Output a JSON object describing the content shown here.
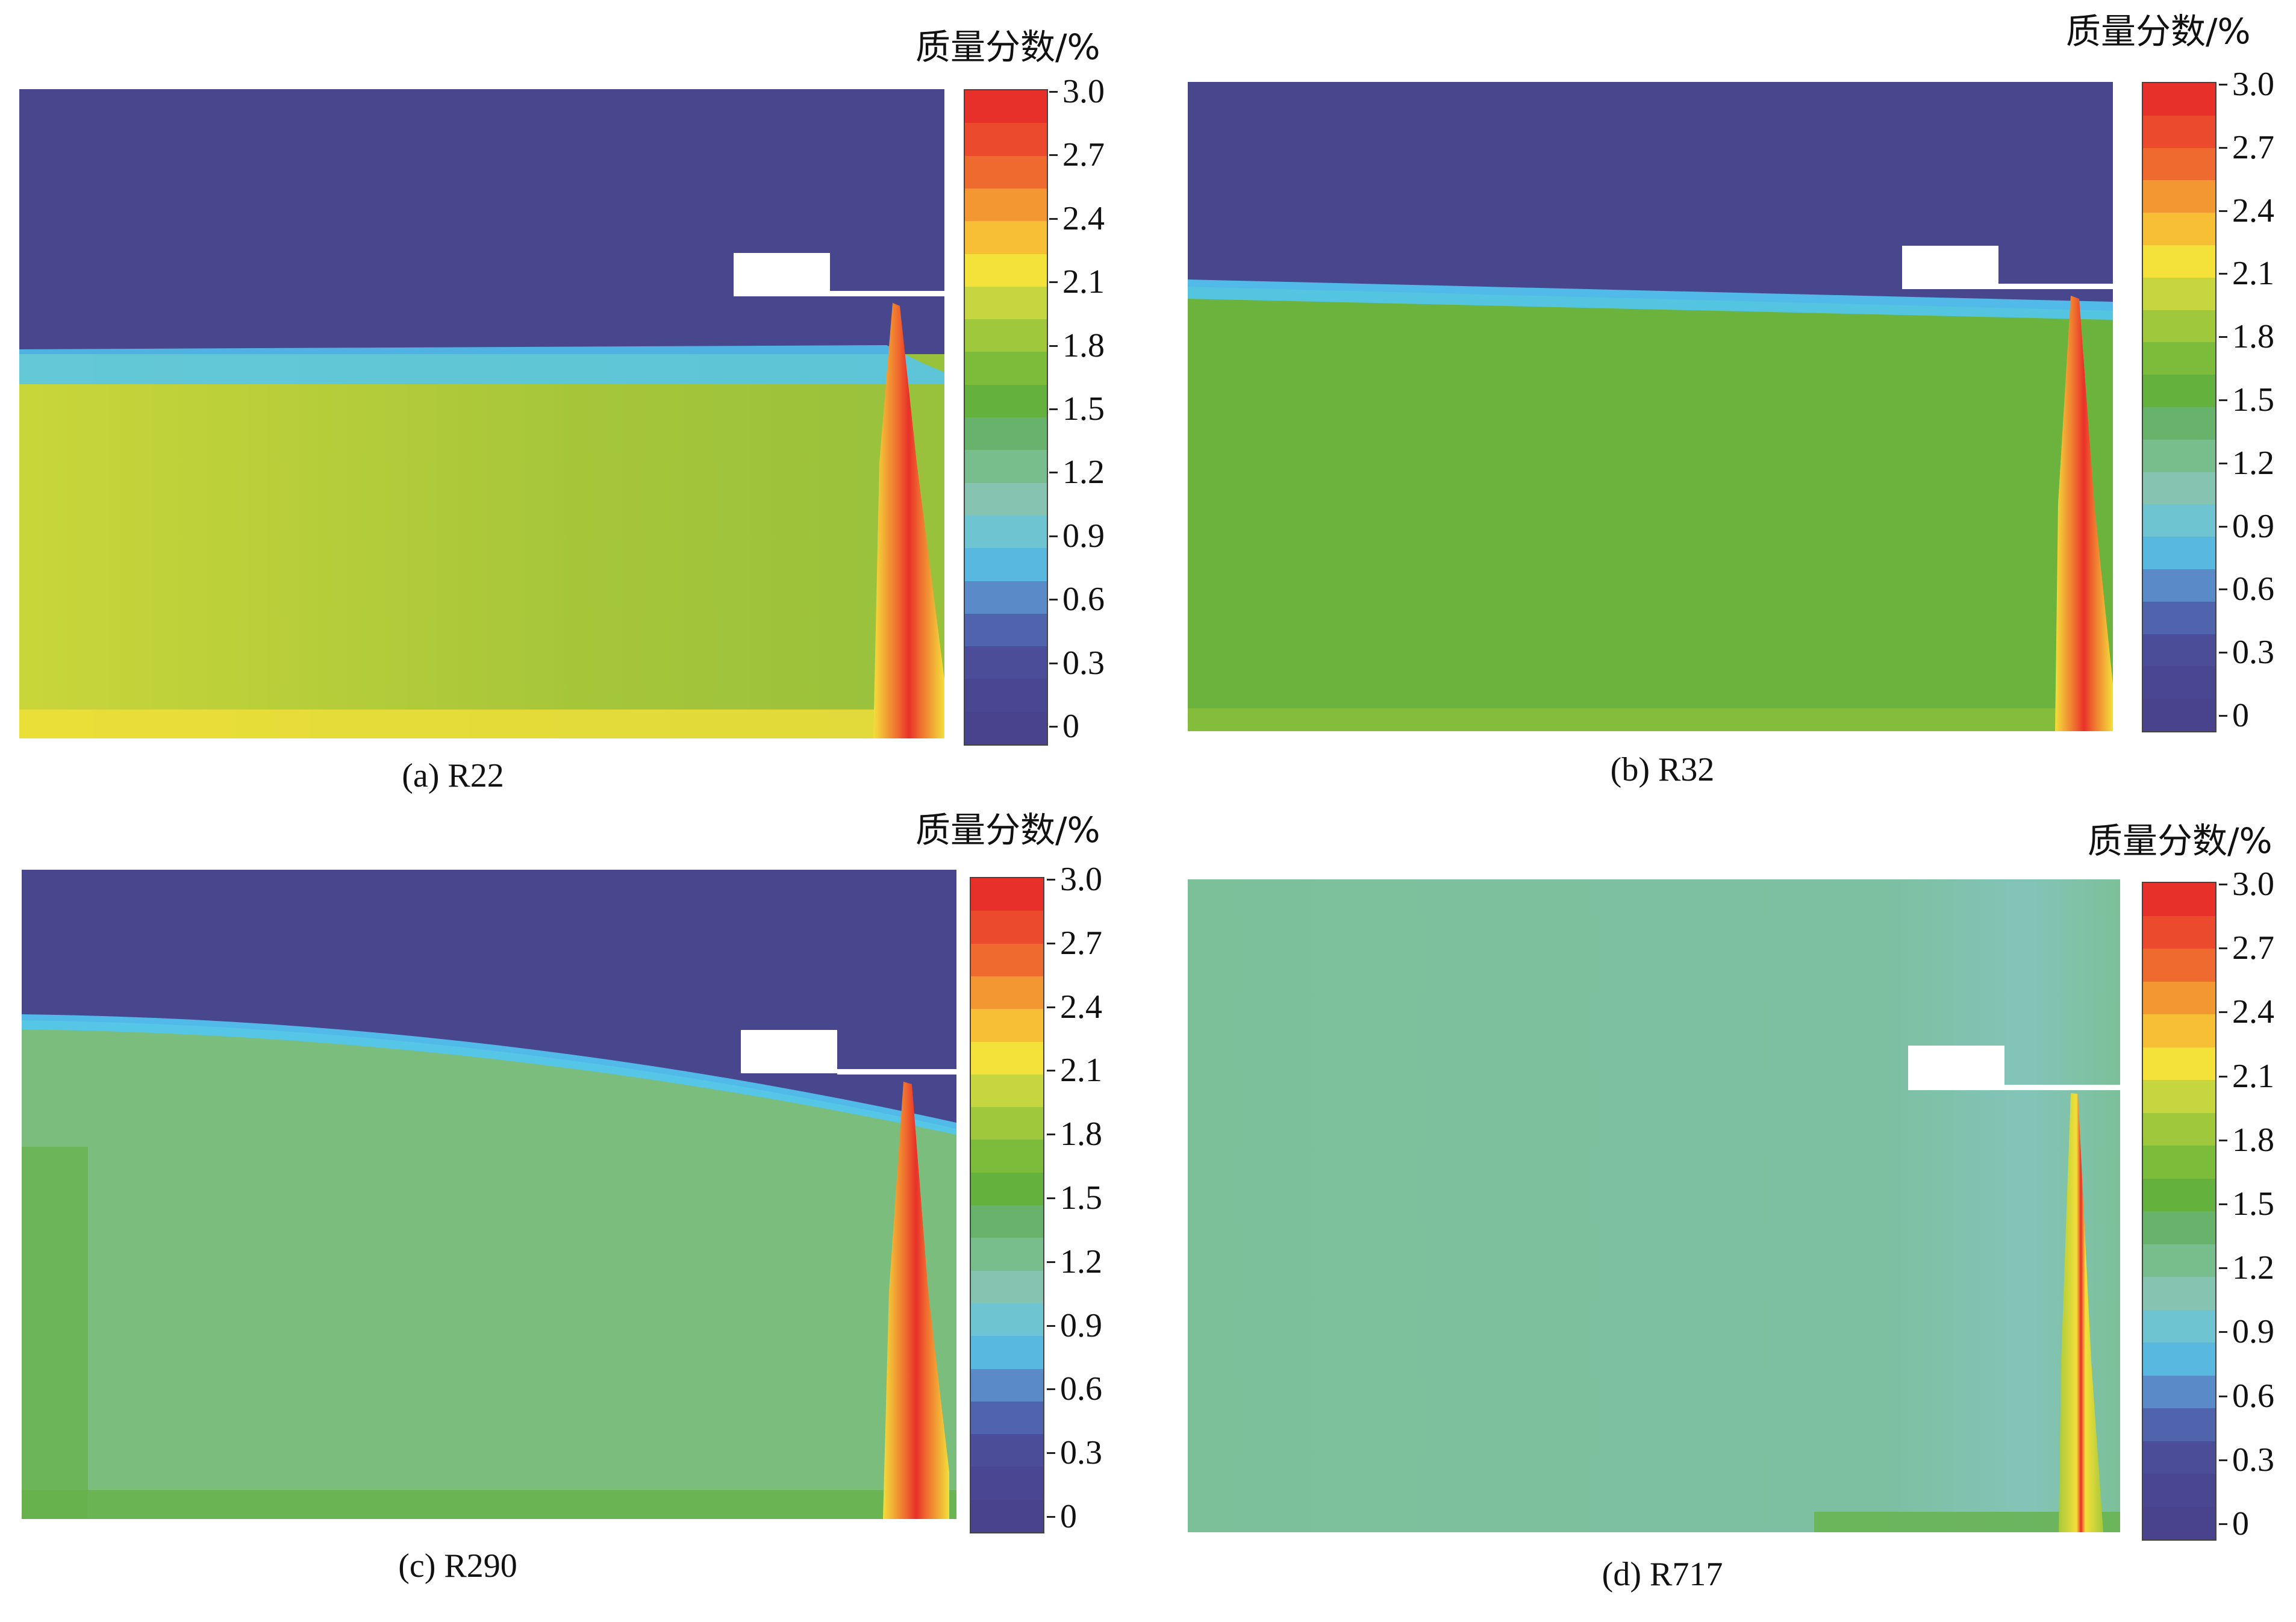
{
  "unit_label": "质量分数/%",
  "colorbar": {
    "ticks": [
      "3.0",
      "2.7",
      "2.4",
      "2.1",
      "1.8",
      "1.5",
      "1.2",
      "0.9",
      "0.6",
      "0.3",
      "0"
    ],
    "bands": [
      "#e8302a",
      "#ec4a2c",
      "#ef6a2e",
      "#f39733",
      "#f7bf35",
      "#f4e23a",
      "#c6d640",
      "#9fc83c",
      "#7dbb3a",
      "#64b23d",
      "#67b36c",
      "#78bd8c",
      "#86c3b0",
      "#6fc4d2",
      "#58b8e0",
      "#5a8ac7",
      "#4f64ad",
      "#4b4d98",
      "#4a4792",
      "#48438c"
    ]
  },
  "panels": [
    {
      "id": "a",
      "caption": "(a) R22",
      "background": "#48478e",
      "fill": "#9fc23a",
      "interface": "#52c6f2",
      "plume": "#e8302a"
    },
    {
      "id": "b",
      "caption": "(b) R32",
      "background": "#48478e",
      "fill": "#6bb33c",
      "interface": "#52c6f2",
      "plume": "#e8302a"
    },
    {
      "id": "c",
      "caption": "(c) R290",
      "background": "#48478e",
      "fill": "#7bbd7c",
      "interface": "#52c6f2",
      "plume": "#e8302a"
    },
    {
      "id": "d",
      "caption": "(d) R717",
      "background": "#7cc09a",
      "fill": "#7cc09a",
      "interface": "#7cc09a",
      "plume": "#e8302a"
    }
  ]
}
